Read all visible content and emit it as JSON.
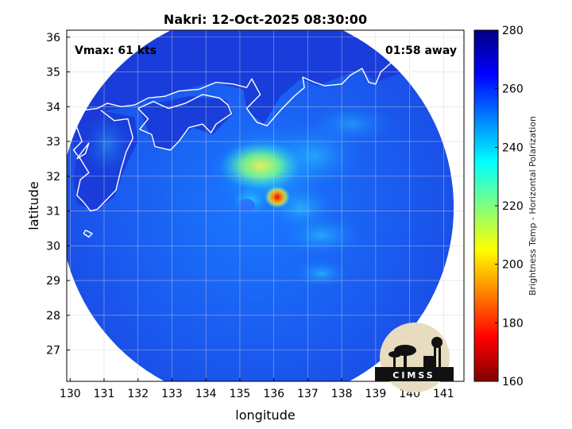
{
  "title": "Nakri: 12-Oct-2025 08:30:00",
  "annotations": {
    "vmax": "Vmax: 61 kts",
    "time_away": "01:58 away"
  },
  "axes": {
    "xlabel": "longitude",
    "ylabel": "latitude",
    "xlim": [
      129.9,
      141.6
    ],
    "ylim": [
      26.1,
      36.2
    ],
    "xticks": [
      130,
      131,
      132,
      133,
      134,
      135,
      136,
      137,
      138,
      139,
      140,
      141
    ],
    "yticks": [
      27,
      28,
      29,
      30,
      31,
      32,
      33,
      34,
      35,
      36
    ],
    "grid": true
  },
  "colorbar": {
    "label": "Brightness Temp - Horizontal Polarization",
    "ticks": [
      160,
      180,
      200,
      220,
      240,
      260,
      280
    ],
    "range": [
      160,
      280
    ],
    "colormap": "jet",
    "colors": [
      "#800000",
      "#ff0000",
      "#ff8000",
      "#ffff00",
      "#80ff80",
      "#00ffff",
      "#0080ff",
      "#0000ff",
      "#000080"
    ]
  },
  "storm": {
    "center_lon": 136.1,
    "center_lat": 31.4,
    "min_temp": 175
  },
  "swath": {
    "center_lon": 135.5,
    "center_lat": 31.1,
    "radius_deg": 5.8
  },
  "logo": {
    "text": "CIMSS",
    "bg": "#e8dcc0",
    "fg": "#111111"
  },
  "colors": {
    "background": "#1f3fd8",
    "coastline": "#ffffff",
    "grid": "#d0d0d0"
  }
}
